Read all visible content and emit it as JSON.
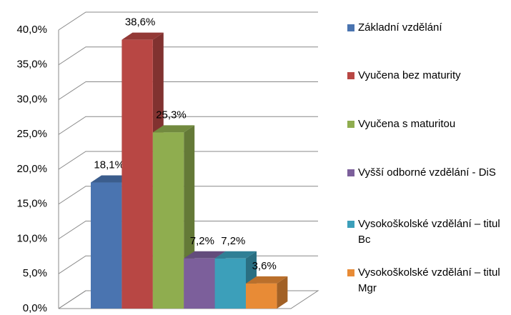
{
  "chart_data": {
    "type": "bar3d",
    "categories": [
      "Základní vzdělání",
      "Vyučena bez maturity",
      "Vyučena s maturitou",
      "Vyšší odborné vzdělání - DiS",
      "Vysokoškolské vzdělání – titul Bc",
      "Vysokoškolské vzdělání – titul Mgr"
    ],
    "values": [
      18.1,
      38.6,
      25.3,
      7.2,
      7.2,
      3.6
    ],
    "value_labels": [
      "18,1%",
      "38,6%",
      "25,3%",
      "7,2%",
      "7,2%",
      "3,6%"
    ],
    "colors": [
      "#4a74b0",
      "#b84744",
      "#8fad4f",
      "#7c5f9b",
      "#3c9fba",
      "#e88b36"
    ],
    "ylim": [
      0,
      40
    ],
    "yticks": [
      {
        "value": 0,
        "label": "0,0%"
      },
      {
        "value": 5,
        "label": "5,0%"
      },
      {
        "value": 10,
        "label": "10,0%"
      },
      {
        "value": 15,
        "label": "15,0%"
      },
      {
        "value": 20,
        "label": "20,0%"
      },
      {
        "value": 25,
        "label": "25,0%"
      },
      {
        "value": 30,
        "label": "30,0%"
      },
      {
        "value": 35,
        "label": "35,0%"
      },
      {
        "value": 40,
        "label": "40,0%"
      }
    ],
    "grid": true,
    "legend": "right"
  }
}
